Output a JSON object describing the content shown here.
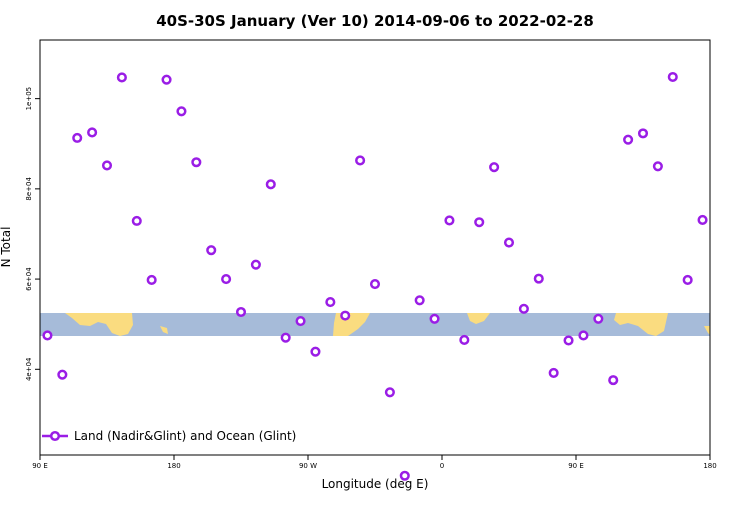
{
  "chart_data": {
    "type": "scatter",
    "title": "40S-30S January (Ver 10)   2014-09-06 to 2022-02-28",
    "xlabel": "Longitude (deg E)",
    "ylabel": "N Total",
    "xlim": [
      90,
      540
    ],
    "ylim": [
      21000,
      113000
    ],
    "x_ticks": [
      {
        "value": 90,
        "label": "90 E"
      },
      {
        "value": 180,
        "label": "180"
      },
      {
        "value": 270,
        "label": "90 W"
      },
      {
        "value": 360,
        "label": "0"
      },
      {
        "value": 450,
        "label": "90 E"
      },
      {
        "value": 540,
        "label": "180"
      }
    ],
    "y_ticks": [
      {
        "value": 40000,
        "label": "4e+04"
      },
      {
        "value": 60000,
        "label": "6e+04"
      },
      {
        "value": 80000,
        "label": "8e+04"
      },
      {
        "value": 100000,
        "label": "1e+05"
      }
    ],
    "legend_position": "bottom-left",
    "grid": false,
    "series": [
      {
        "name": "Land (Nadir&Glint) and Ocean (Glint)",
        "color": "#9a1de6",
        "marker": "open-circle",
        "x": [
          95,
          105,
          115,
          125,
          135,
          145,
          155,
          165,
          175,
          185,
          195,
          205,
          215,
          225,
          235,
          245,
          255,
          265,
          275,
          285,
          295,
          305,
          315,
          325,
          335,
          345,
          355,
          365,
          375,
          385,
          395,
          405,
          415,
          425,
          435,
          445,
          455,
          465,
          475,
          485,
          495,
          505,
          515,
          525,
          535
        ],
        "y": [
          47500,
          38800,
          91300,
          92500,
          85200,
          104700,
          72900,
          59800,
          104200,
          97200,
          85900,
          66400,
          60000,
          52700,
          63200,
          81000,
          47000,
          50700,
          43900,
          54900,
          51900,
          86300,
          58900,
          34900,
          16400,
          55300,
          51200,
          73000,
          46500,
          72600,
          84800,
          68100,
          53400,
          60100,
          39200,
          46400,
          47500,
          51200,
          37600,
          90900,
          92300,
          85000,
          104800,
          59800,
          73100
        ]
      }
    ]
  },
  "map_colors": {
    "ocean": "#a6bbd9",
    "land": "#fadc80"
  }
}
